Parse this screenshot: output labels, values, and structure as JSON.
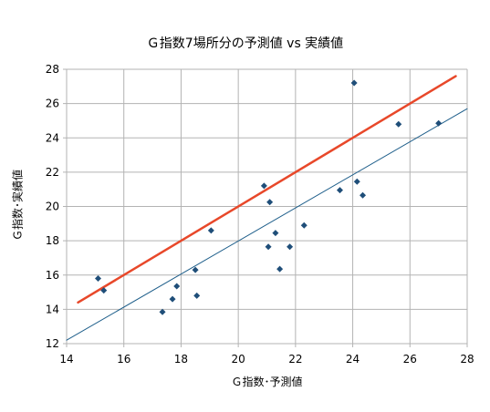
{
  "chart_data": {
    "type": "scatter",
    "title": "Ｇ指数7場所分の予測値 vs 実績値",
    "xlabel": "Ｇ指数･予測値",
    "ylabel": "Ｇ指数･実績値",
    "xlim": [
      14,
      28
    ],
    "ylim": [
      12,
      28
    ],
    "x_ticks": [
      14,
      16,
      18,
      20,
      22,
      24,
      26,
      28
    ],
    "y_ticks": [
      12,
      14,
      16,
      18,
      20,
      22,
      24,
      26,
      28
    ],
    "grid": true,
    "legend": "none",
    "series": [
      {
        "kind": "points",
        "color": "#1f4e79",
        "points": [
          [
            15.1,
            15.8
          ],
          [
            15.3,
            15.1
          ],
          [
            17.35,
            13.85
          ],
          [
            17.7,
            14.6
          ],
          [
            17.85,
            15.35
          ],
          [
            18.5,
            16.3
          ],
          [
            18.55,
            14.8
          ],
          [
            19.05,
            18.6
          ],
          [
            20.9,
            21.2
          ],
          [
            21.05,
            17.65
          ],
          [
            21.1,
            20.25
          ],
          [
            21.3,
            18.45
          ],
          [
            21.45,
            16.35
          ],
          [
            21.8,
            17.65
          ],
          [
            22.3,
            18.9
          ],
          [
            23.55,
            20.95
          ],
          [
            24.05,
            27.2
          ],
          [
            24.15,
            21.45
          ],
          [
            24.35,
            20.65
          ],
          [
            25.6,
            24.8
          ],
          [
            27.0,
            24.85
          ]
        ]
      },
      {
        "kind": "line",
        "color": "#e8482a",
        "points": [
          [
            14.4,
            14.4
          ],
          [
            27.6,
            27.6
          ]
        ]
      },
      {
        "kind": "line",
        "color": "#1f5f8b",
        "points": [
          [
            14,
            12.2
          ],
          [
            28,
            25.7
          ]
        ]
      }
    ]
  }
}
